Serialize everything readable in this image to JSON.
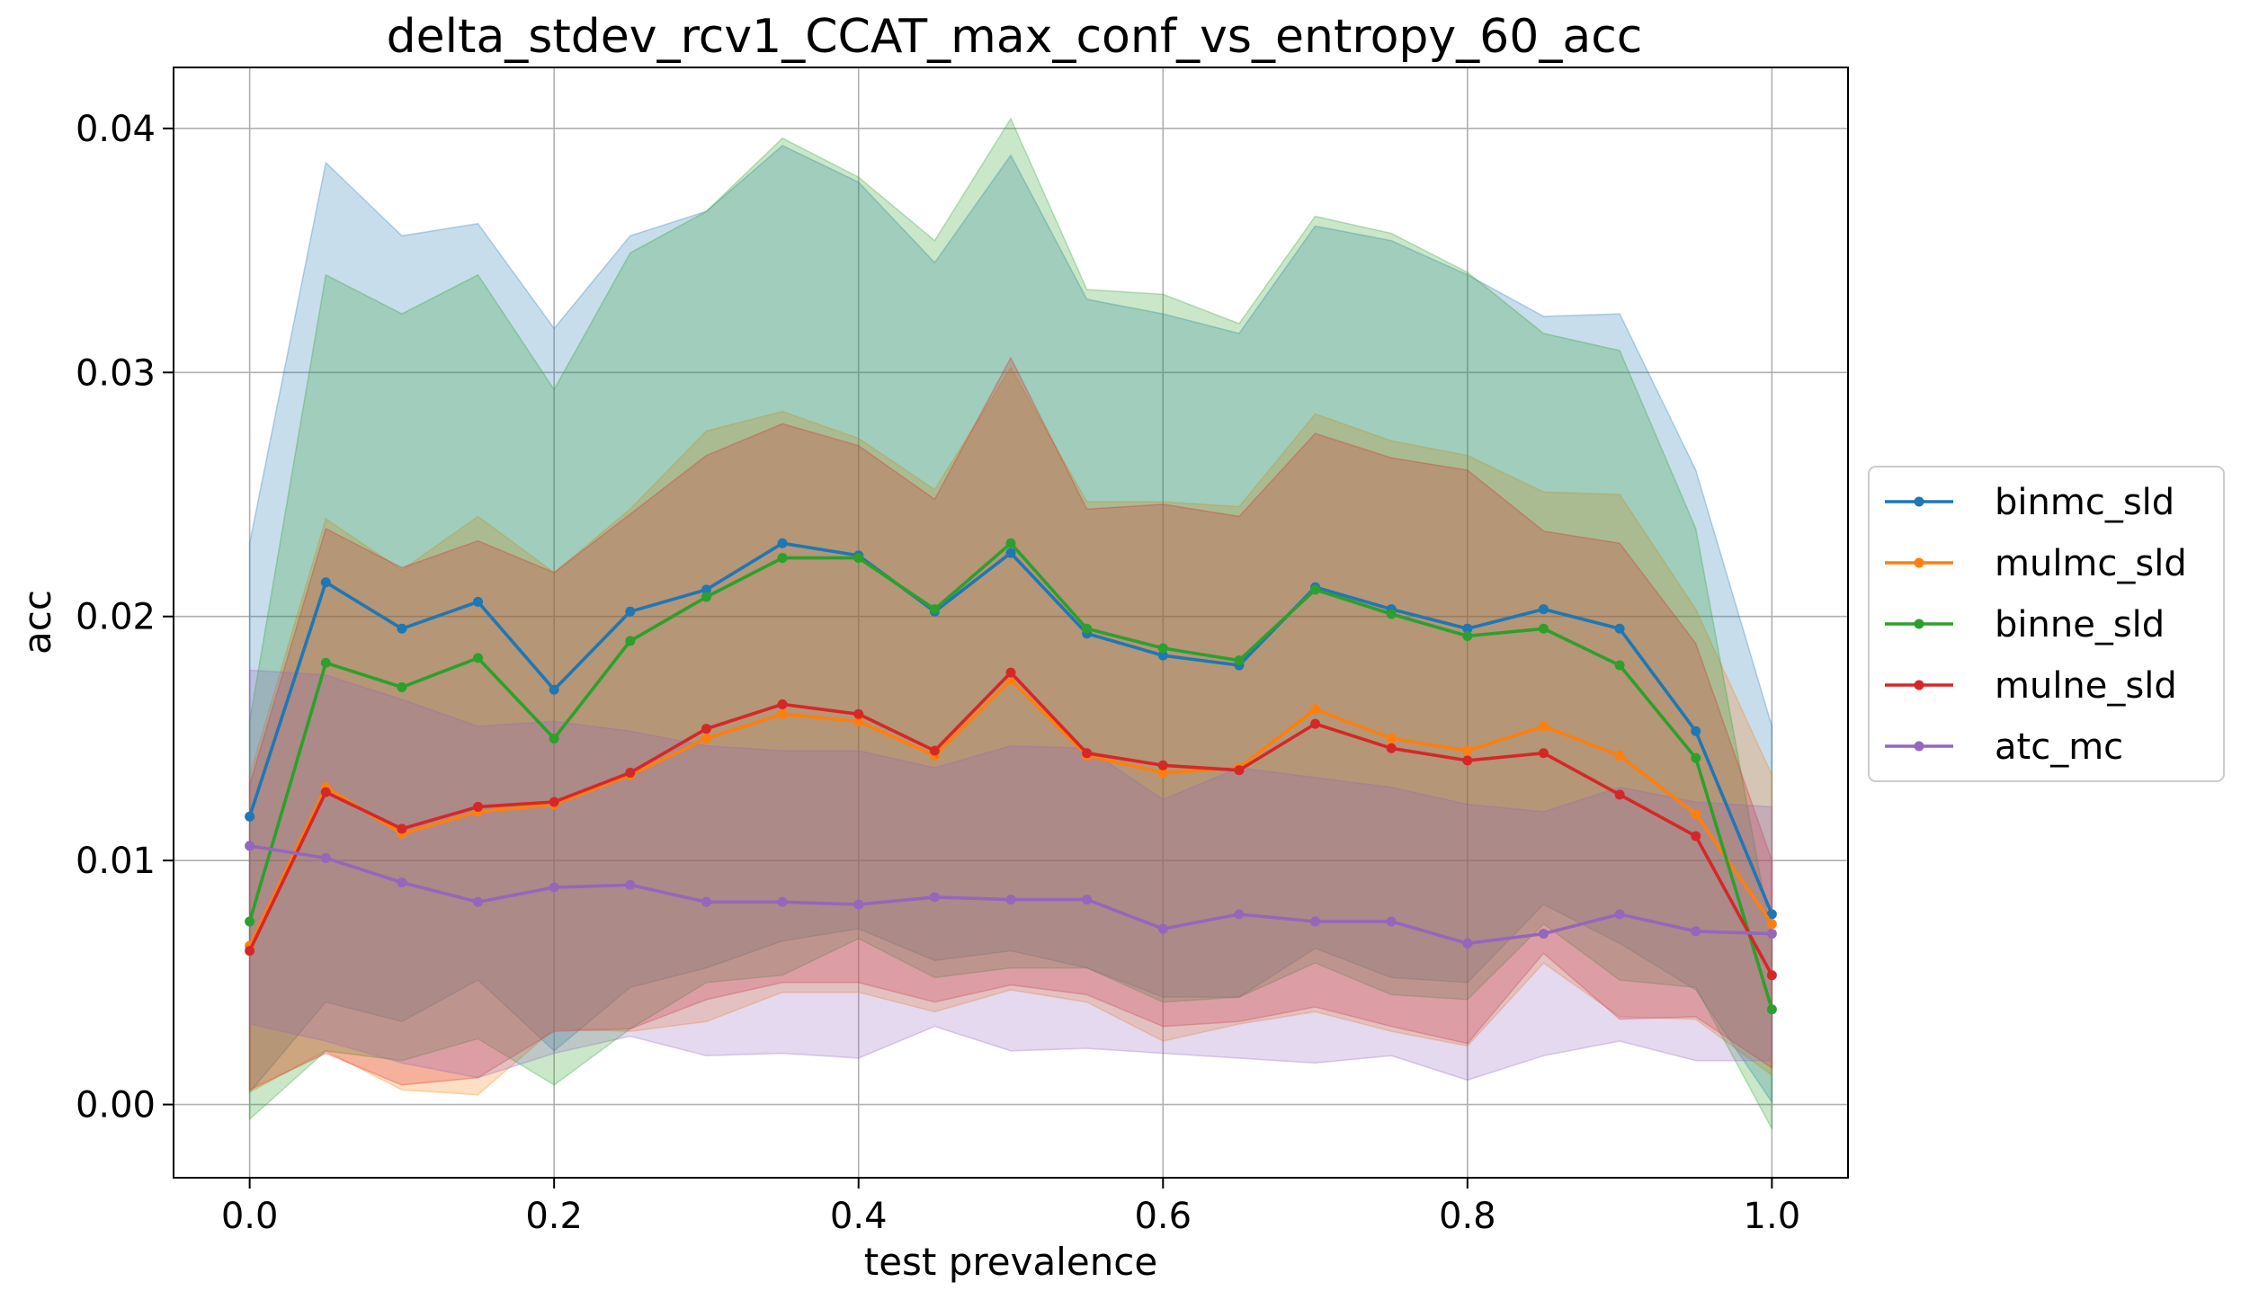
{
  "chart_data": {
    "type": "line",
    "title": "delta_stdev_rcv1_CCAT_max_conf_vs_entropy_60_acc",
    "xlabel": "test prevalence",
    "ylabel": "acc",
    "xlim": [
      -0.05,
      1.05
    ],
    "ylim": [
      -0.003,
      0.0425
    ],
    "x_ticks": [
      0.0,
      0.2,
      0.4,
      0.6,
      0.8,
      1.0
    ],
    "x_tick_labels": [
      "0.0",
      "0.2",
      "0.4",
      "0.6",
      "0.8",
      "1.0"
    ],
    "y_ticks": [
      0.0,
      0.01,
      0.02,
      0.03,
      0.04
    ],
    "y_tick_labels": [
      "0.00",
      "0.01",
      "0.02",
      "0.03",
      "0.04"
    ],
    "grid": true,
    "legend_position": "right",
    "x": [
      0.0,
      0.05,
      0.1,
      0.15,
      0.2,
      0.25,
      0.3,
      0.35,
      0.4,
      0.45,
      0.5,
      0.55,
      0.6,
      0.65,
      0.7,
      0.75,
      0.8,
      0.85,
      0.9,
      0.95,
      1.0
    ],
    "series": [
      {
        "name": "binmc_sld",
        "color": "#1f77b4",
        "values": [
          0.0118,
          0.0214,
          0.0195,
          0.0206,
          0.017,
          0.0202,
          0.0211,
          0.023,
          0.0225,
          0.0202,
          0.0226,
          0.0193,
          0.0184,
          0.018,
          0.0212,
          0.0203,
          0.0195,
          0.0203,
          0.0195,
          0.0153,
          0.0078
        ],
        "upper": [
          0.023,
          0.0386,
          0.0356,
          0.0361,
          0.0318,
          0.0356,
          0.0366,
          0.0393,
          0.0378,
          0.0345,
          0.0389,
          0.033,
          0.0324,
          0.0316,
          0.036,
          0.0354,
          0.034,
          0.0323,
          0.0324,
          0.026,
          0.0155
        ],
        "lower": [
          0.0005,
          0.0042,
          0.0034,
          0.0051,
          0.0022,
          0.0048,
          0.0056,
          0.0067,
          0.0072,
          0.0059,
          0.0063,
          0.0056,
          0.0044,
          0.0044,
          0.0064,
          0.0052,
          0.005,
          0.0082,
          0.0066,
          0.0047,
          0.0001
        ]
      },
      {
        "name": "mulmc_sld",
        "color": "#ff7f0e",
        "values": [
          0.0065,
          0.013,
          0.0111,
          0.012,
          0.0123,
          0.0135,
          0.015,
          0.016,
          0.0157,
          0.0143,
          0.0174,
          0.0143,
          0.0136,
          0.0138,
          0.0162,
          0.015,
          0.0145,
          0.0155,
          0.0143,
          0.0119,
          0.0074
        ],
        "upper": [
          0.0135,
          0.024,
          0.0219,
          0.0241,
          0.0218,
          0.0244,
          0.0276,
          0.0284,
          0.0273,
          0.0252,
          0.0302,
          0.0247,
          0.0247,
          0.0245,
          0.0283,
          0.0272,
          0.0266,
          0.0251,
          0.025,
          0.0203,
          0.0135
        ],
        "lower": [
          0.0005,
          0.0022,
          0.0006,
          0.0004,
          0.0031,
          0.003,
          0.0034,
          0.0046,
          0.0046,
          0.0038,
          0.0047,
          0.0042,
          0.0026,
          0.0033,
          0.0038,
          0.003,
          0.0024,
          0.0058,
          0.0036,
          0.0035,
          0.0012
        ]
      },
      {
        "name": "binne_sld",
        "color": "#2ca02c",
        "values": [
          0.0075,
          0.0181,
          0.0171,
          0.0183,
          0.015,
          0.019,
          0.0208,
          0.0224,
          0.0224,
          0.0203,
          0.023,
          0.0195,
          0.0187,
          0.0182,
          0.0211,
          0.0201,
          0.0192,
          0.0195,
          0.018,
          0.0142,
          0.0039
        ],
        "upper": [
          0.0157,
          0.034,
          0.0324,
          0.034,
          0.0293,
          0.0349,
          0.0366,
          0.0396,
          0.038,
          0.0354,
          0.0404,
          0.0334,
          0.0332,
          0.032,
          0.0364,
          0.0357,
          0.0341,
          0.0316,
          0.0309,
          0.0236,
          0.0068
        ],
        "lower": [
          -0.0006,
          0.0022,
          0.0018,
          0.0027,
          0.0008,
          0.0031,
          0.005,
          0.0053,
          0.0068,
          0.0052,
          0.0056,
          0.0056,
          0.0042,
          0.0044,
          0.0058,
          0.0045,
          0.0043,
          0.0074,
          0.0051,
          0.0048,
          -0.001
        ]
      },
      {
        "name": "mulne_sld",
        "color": "#d62728",
        "values": [
          0.0063,
          0.0128,
          0.0113,
          0.0122,
          0.0124,
          0.0136,
          0.0154,
          0.0164,
          0.016,
          0.0145,
          0.0177,
          0.0144,
          0.0139,
          0.0137,
          0.0156,
          0.0146,
          0.0141,
          0.0144,
          0.0127,
          0.011,
          0.0053
        ],
        "upper": [
          0.0131,
          0.0236,
          0.022,
          0.0231,
          0.0218,
          0.0242,
          0.0266,
          0.0279,
          0.027,
          0.0248,
          0.0306,
          0.0244,
          0.0246,
          0.0241,
          0.0275,
          0.0265,
          0.026,
          0.0235,
          0.023,
          0.0189,
          0.01
        ],
        "lower": [
          0.0006,
          0.0021,
          0.0008,
          0.0011,
          0.003,
          0.0031,
          0.0043,
          0.005,
          0.005,
          0.0042,
          0.0049,
          0.0045,
          0.0032,
          0.0034,
          0.004,
          0.0032,
          0.0025,
          0.0062,
          0.0035,
          0.0036,
          0.0015
        ]
      },
      {
        "name": "atc_mc",
        "color": "#9467bd",
        "values": [
          0.0106,
          0.0101,
          0.0091,
          0.0083,
          0.0089,
          0.009,
          0.0083,
          0.0083,
          0.0082,
          0.0085,
          0.0084,
          0.0084,
          0.0072,
          0.0078,
          0.0075,
          0.0075,
          0.0066,
          0.007,
          0.0078,
          0.0071,
          0.007
        ],
        "upper": [
          0.0178,
          0.0176,
          0.0166,
          0.0155,
          0.0157,
          0.0153,
          0.0147,
          0.0145,
          0.0145,
          0.0138,
          0.0147,
          0.0146,
          0.0125,
          0.0138,
          0.0134,
          0.013,
          0.0123,
          0.012,
          0.013,
          0.0124,
          0.0122
        ],
        "lower": [
          0.0033,
          0.0026,
          0.0017,
          0.0011,
          0.0021,
          0.0028,
          0.002,
          0.0021,
          0.0019,
          0.0032,
          0.0022,
          0.0023,
          0.0021,
          0.0019,
          0.0017,
          0.002,
          0.001,
          0.002,
          0.0026,
          0.0018,
          0.0018
        ]
      }
    ]
  }
}
